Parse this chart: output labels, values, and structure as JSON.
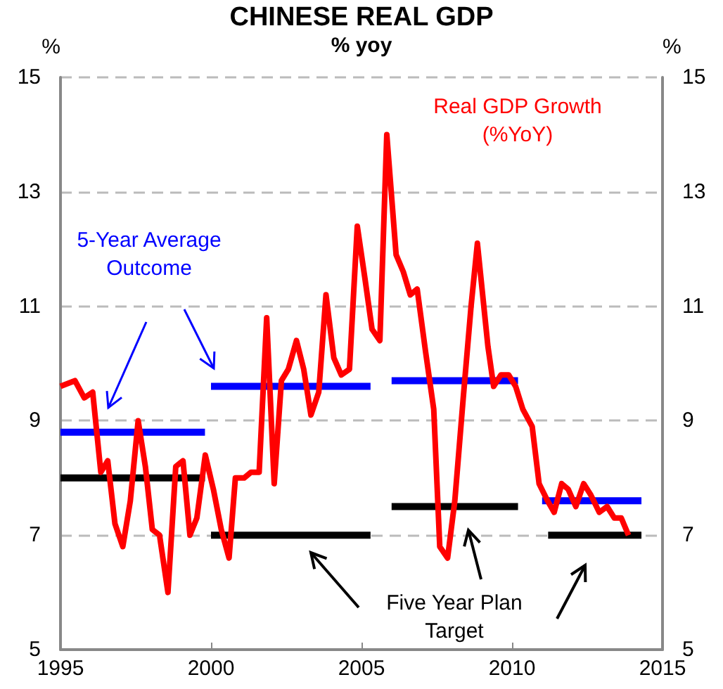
{
  "chart_data": {
    "type": "line",
    "title": "CHINESE REAL GDP",
    "subtitle": "% yoy",
    "ylabel": "%",
    "y2label": "%",
    "xlim": [
      1995,
      2015
    ],
    "xticks": [
      1995,
      2000,
      2005,
      2010,
      2015
    ],
    "ylim": [
      5,
      15
    ],
    "yticks": [
      5,
      7,
      9,
      11,
      13,
      15
    ],
    "y2lim": [
      5,
      15
    ],
    "y2ticks": [
      5,
      7,
      9,
      11,
      13,
      15
    ],
    "grid": "y",
    "marker": "none",
    "line_style": "solid",
    "series": [
      {
        "name": "Real GDP Growth (%YoY)",
        "color": "#ff0000",
        "x": [
          1995.0,
          1995.48,
          1995.79,
          1996.07,
          1996.34,
          1996.57,
          1996.81,
          1997.07,
          1997.32,
          1997.58,
          1997.82,
          1998.05,
          1998.29,
          1998.57,
          1998.83,
          1999.07,
          1999.3,
          1999.53,
          1999.81,
          2000.08,
          2000.34,
          2000.6,
          2000.81,
          2001.1,
          2001.33,
          2001.6,
          2001.85,
          2002.1,
          2002.34,
          2002.57,
          2002.84,
          2003.08,
          2003.32,
          2003.58,
          2003.82,
          2004.08,
          2004.33,
          2004.6,
          2004.86,
          2005.11,
          2005.35,
          2005.61,
          2005.84,
          2006.15,
          2006.39,
          2006.62,
          2006.85,
          2007.13,
          2007.4,
          2007.6,
          2007.86,
          2008.1,
          2008.38,
          2008.64,
          2008.85,
          2009.2,
          2009.39,
          2009.63,
          2009.89,
          2010.12,
          2010.36,
          2010.67,
          2010.9,
          2011.18,
          2011.4,
          2011.65,
          2011.87,
          2012.12,
          2012.38,
          2012.62,
          2012.9,
          2013.16,
          2013.4,
          2013.63,
          2013.87
        ],
        "values": [
          9.6,
          9.7,
          9.4,
          9.5,
          8.1,
          8.3,
          7.2,
          6.8,
          7.6,
          9.0,
          8.2,
          7.1,
          7.0,
          6.0,
          8.2,
          8.3,
          7.0,
          7.3,
          8.4,
          7.8,
          7.1,
          6.6,
          8.0,
          8.0,
          8.1,
          8.1,
          10.8,
          7.9,
          9.7,
          9.9,
          10.4,
          9.9,
          9.1,
          9.5,
          11.2,
          10.1,
          9.8,
          9.9,
          12.4,
          11.5,
          10.6,
          10.4,
          14.0,
          11.9,
          11.6,
          11.2,
          11.3,
          10.2,
          9.2,
          6.8,
          6.6,
          7.6,
          9.4,
          11.0,
          12.1,
          10.3,
          9.6,
          9.8,
          9.8,
          9.6,
          9.2,
          8.9,
          7.9,
          7.6,
          7.4,
          7.9,
          7.8,
          7.5,
          7.9,
          7.7,
          7.4,
          7.5,
          7.3,
          7.3,
          7.0
        ]
      },
      {
        "color": "#0000ff",
        "x": [
          1995,
          1999.8
        ],
        "values": [
          8.8,
          8.8
        ]
      },
      {
        "color": "#0000ff",
        "x": [
          2000,
          2005.3
        ],
        "values": [
          9.6,
          9.6
        ]
      },
      {
        "color": "#0000ff",
        "x": [
          2006,
          2010.2
        ],
        "values": [
          9.7,
          9.7
        ]
      },
      {
        "color": "#0000ff",
        "x": [
          2011,
          2014.3
        ],
        "values": [
          7.6,
          7.6
        ]
      },
      {
        "color": "#000000",
        "x": [
          1995,
          1999.8
        ],
        "values": [
          8.0,
          8.0
        ]
      },
      {
        "color": "#000000",
        "x": [
          2000,
          2005.3
        ],
        "values": [
          7.0,
          7.0
        ]
      },
      {
        "color": "#000000",
        "x": [
          2006,
          2010.2
        ],
        "values": [
          7.5,
          7.5
        ]
      },
      {
        "color": "#000000",
        "x": [
          2011.2,
          2014.3
        ],
        "values": [
          7.0,
          7.0
        ]
      }
    ],
    "annotations": [
      "5-Year Average\nOutcome",
      "Five Year Plan\nTarget"
    ]
  }
}
